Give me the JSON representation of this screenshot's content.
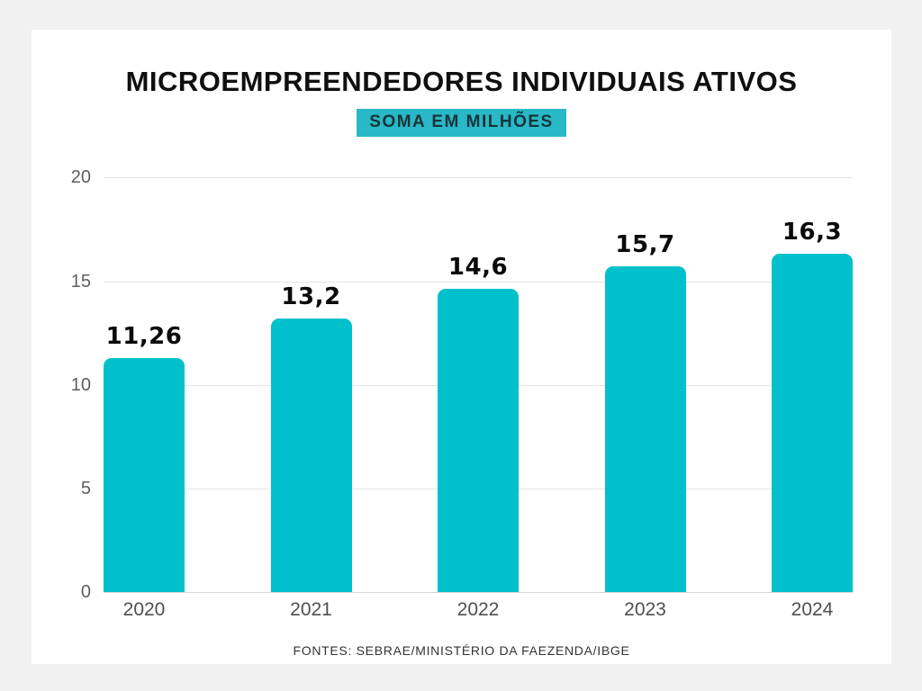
{
  "page": {
    "title": "MICROEMPREENDEDORES INDIVIDUAIS ATIVOS",
    "subtitle_badge": "SOMA EM MILHÕES",
    "source": "FONTES: SEBRAE/MINISTÉRIO DA FAEZENDA/IBGE"
  },
  "colors": {
    "bar": "#00c0cb",
    "badge_background": "#29b8c5",
    "page_background": "#f1f1f1",
    "card_background": "#ffffff",
    "gridline": "#e4e4e4",
    "axis_text": "#5f5f5f"
  },
  "chart_data": {
    "type": "bar",
    "title": "MICROEMPREENDEDORES INDIVIDUAIS ATIVOS",
    "subtitle": "SOMA EM MILHÕES",
    "categories": [
      "2020",
      "2021",
      "2022",
      "2023",
      "2024"
    ],
    "values": [
      11.26,
      13.2,
      14.6,
      15.7,
      16.3
    ],
    "value_labels": [
      "11,26",
      "13,2",
      "14,6",
      "15,7",
      "16,3"
    ],
    "xlabel": "",
    "ylabel": "",
    "ylim": [
      0,
      20
    ],
    "yticks": [
      "20",
      "15",
      "10",
      "5",
      "0"
    ],
    "grid": true,
    "legend": false,
    "source": "FONTES: SEBRAE/MINISTÉRIO DA FAEZENDA/IBGE"
  }
}
